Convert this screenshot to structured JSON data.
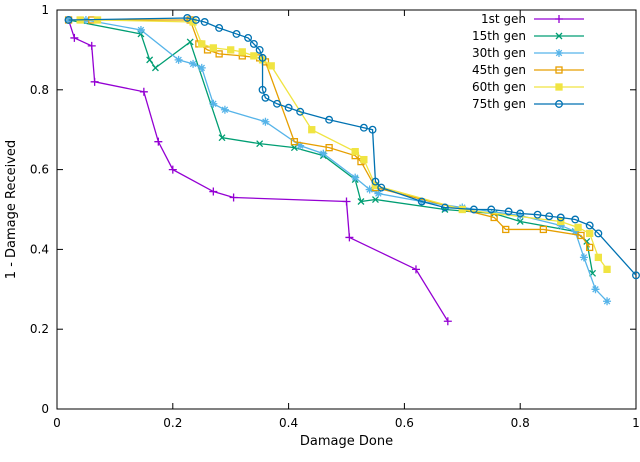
{
  "chart_data": {
    "type": "line",
    "title": "",
    "xlabel": "Damage Done",
    "ylabel": "1 - Damage Received",
    "xlim": [
      0,
      1
    ],
    "ylim": [
      0,
      1
    ],
    "x_ticks": [
      0,
      0.2,
      0.4,
      0.6,
      0.8,
      1
    ],
    "y_ticks": [
      0,
      0.2,
      0.4,
      0.6,
      0.8,
      1
    ],
    "x_tick_labels": [
      "0",
      "0.2",
      "0.4",
      "0.6",
      "0.8",
      "1"
    ],
    "y_tick_labels": [
      "0",
      "0.2",
      "0.4",
      "0.6",
      "0.8",
      "1"
    ],
    "grid": false,
    "legend_position": "top-right",
    "background": "#ffffff",
    "axis_color": "#000000",
    "series": [
      {
        "name": "1st gen",
        "color": "#9400d3",
        "marker": "plus",
        "points": [
          [
            0.02,
            0.975
          ],
          [
            0.03,
            0.93
          ],
          [
            0.06,
            0.91
          ],
          [
            0.065,
            0.82
          ],
          [
            0.15,
            0.795
          ],
          [
            0.175,
            0.67
          ],
          [
            0.2,
            0.6
          ],
          [
            0.27,
            0.545
          ],
          [
            0.305,
            0.53
          ],
          [
            0.5,
            0.52
          ],
          [
            0.505,
            0.43
          ],
          [
            0.62,
            0.35
          ],
          [
            0.675,
            0.22
          ]
        ]
      },
      {
        "name": "15th gen",
        "color": "#009e73",
        "marker": "cross",
        "points": [
          [
            0.02,
            0.975
          ],
          [
            0.145,
            0.94
          ],
          [
            0.16,
            0.875
          ],
          [
            0.17,
            0.855
          ],
          [
            0.23,
            0.92
          ],
          [
            0.285,
            0.68
          ],
          [
            0.35,
            0.665
          ],
          [
            0.41,
            0.655
          ],
          [
            0.46,
            0.635
          ],
          [
            0.515,
            0.575
          ],
          [
            0.525,
            0.52
          ],
          [
            0.55,
            0.525
          ],
          [
            0.67,
            0.5
          ],
          [
            0.755,
            0.49
          ],
          [
            0.8,
            0.47
          ],
          [
            0.895,
            0.445
          ],
          [
            0.915,
            0.42
          ],
          [
            0.925,
            0.34
          ]
        ]
      },
      {
        "name": "30th gen",
        "color": "#56b4e9",
        "marker": "asterisk",
        "points": [
          [
            0.02,
            0.975
          ],
          [
            0.05,
            0.975
          ],
          [
            0.145,
            0.95
          ],
          [
            0.21,
            0.875
          ],
          [
            0.235,
            0.865
          ],
          [
            0.25,
            0.855
          ],
          [
            0.27,
            0.765
          ],
          [
            0.29,
            0.75
          ],
          [
            0.36,
            0.72
          ],
          [
            0.42,
            0.66
          ],
          [
            0.46,
            0.64
          ],
          [
            0.515,
            0.58
          ],
          [
            0.54,
            0.55
          ],
          [
            0.555,
            0.54
          ],
          [
            0.63,
            0.52
          ],
          [
            0.7,
            0.505
          ],
          [
            0.8,
            0.485
          ],
          [
            0.87,
            0.46
          ],
          [
            0.895,
            0.445
          ],
          [
            0.91,
            0.38
          ],
          [
            0.93,
            0.3
          ],
          [
            0.95,
            0.27
          ]
        ]
      },
      {
        "name": "45th gen",
        "color": "#e69f00",
        "marker": "square-open",
        "points": [
          [
            0.02,
            0.975
          ],
          [
            0.06,
            0.975
          ],
          [
            0.23,
            0.975
          ],
          [
            0.245,
            0.915
          ],
          [
            0.26,
            0.9
          ],
          [
            0.28,
            0.89
          ],
          [
            0.32,
            0.885
          ],
          [
            0.35,
            0.88
          ],
          [
            0.36,
            0.87
          ],
          [
            0.41,
            0.67
          ],
          [
            0.47,
            0.655
          ],
          [
            0.515,
            0.635
          ],
          [
            0.525,
            0.62
          ],
          [
            0.55,
            0.555
          ],
          [
            0.755,
            0.48
          ],
          [
            0.775,
            0.45
          ],
          [
            0.84,
            0.45
          ],
          [
            0.905,
            0.435
          ],
          [
            0.92,
            0.405
          ]
        ]
      },
      {
        "name": "60th gen",
        "color": "#f0e442",
        "marker": "square-filled",
        "points": [
          [
            0.04,
            0.975
          ],
          [
            0.07,
            0.975
          ],
          [
            0.235,
            0.97
          ],
          [
            0.25,
            0.915
          ],
          [
            0.27,
            0.905
          ],
          [
            0.3,
            0.9
          ],
          [
            0.32,
            0.895
          ],
          [
            0.34,
            0.885
          ],
          [
            0.355,
            0.875
          ],
          [
            0.37,
            0.86
          ],
          [
            0.44,
            0.7
          ],
          [
            0.515,
            0.645
          ],
          [
            0.53,
            0.625
          ],
          [
            0.55,
            0.56
          ],
          [
            0.7,
            0.5
          ],
          [
            0.87,
            0.47
          ],
          [
            0.9,
            0.455
          ],
          [
            0.92,
            0.44
          ],
          [
            0.935,
            0.38
          ],
          [
            0.95,
            0.35
          ]
        ]
      },
      {
        "name": "75th gen",
        "color": "#0072b2",
        "marker": "circle-open",
        "points": [
          [
            0.02,
            0.975
          ],
          [
            0.225,
            0.98
          ],
          [
            0.24,
            0.975
          ],
          [
            0.255,
            0.97
          ],
          [
            0.28,
            0.955
          ],
          [
            0.31,
            0.94
          ],
          [
            0.33,
            0.93
          ],
          [
            0.34,
            0.915
          ],
          [
            0.35,
            0.9
          ],
          [
            0.355,
            0.88
          ],
          [
            0.355,
            0.8
          ],
          [
            0.36,
            0.78
          ],
          [
            0.38,
            0.765
          ],
          [
            0.4,
            0.755
          ],
          [
            0.42,
            0.745
          ],
          [
            0.47,
            0.725
          ],
          [
            0.53,
            0.705
          ],
          [
            0.545,
            0.7
          ],
          [
            0.55,
            0.57
          ],
          [
            0.56,
            0.555
          ],
          [
            0.63,
            0.52
          ],
          [
            0.67,
            0.505
          ],
          [
            0.72,
            0.5
          ],
          [
            0.75,
            0.5
          ],
          [
            0.78,
            0.495
          ],
          [
            0.8,
            0.49
          ],
          [
            0.83,
            0.487
          ],
          [
            0.85,
            0.483
          ],
          [
            0.87,
            0.48
          ],
          [
            0.895,
            0.475
          ],
          [
            0.92,
            0.46
          ],
          [
            0.935,
            0.44
          ],
          [
            1.0,
            0.335
          ]
        ]
      }
    ]
  }
}
